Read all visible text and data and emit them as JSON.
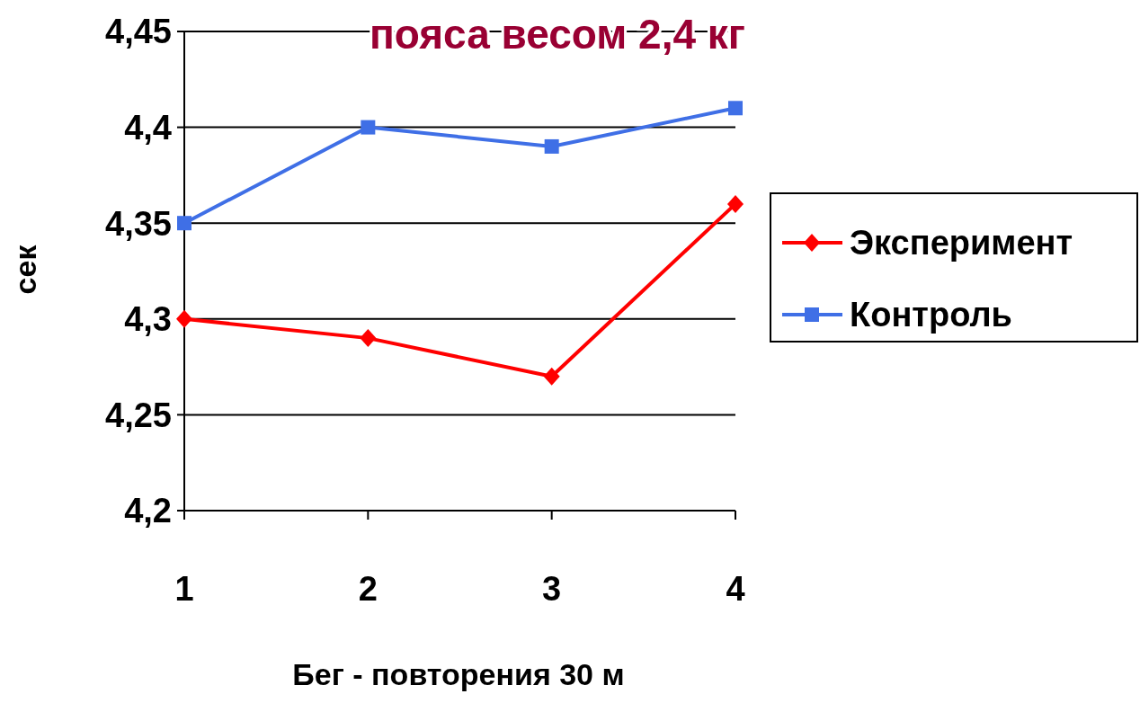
{
  "chart_data": {
    "type": "line",
    "title": "пояса весом 2,4 кг",
    "xlabel": "Бег - повторения 30 м",
    "ylabel": "сек",
    "categories": [
      "1",
      "2",
      "3",
      "4"
    ],
    "series": [
      {
        "name": "Эксперимент",
        "color": "#ff0000",
        "marker": "diamond",
        "values": [
          4.3,
          4.29,
          4.27,
          4.36
        ]
      },
      {
        "name": "Контроль",
        "color": "#3f6fe6",
        "marker": "square",
        "values": [
          4.35,
          4.4,
          4.39,
          4.41
        ]
      }
    ],
    "ylim": [
      4.2,
      4.45
    ],
    "yticks": [
      {
        "value": 4.2,
        "label": "4,2"
      },
      {
        "value": 4.25,
        "label": "4,25"
      },
      {
        "value": 4.3,
        "label": "4,3"
      },
      {
        "value": 4.35,
        "label": "4,35"
      },
      {
        "value": 4.4,
        "label": "4,4"
      },
      {
        "value": 4.45,
        "label": "4,45"
      }
    ],
    "grid": "y",
    "legend": "right"
  }
}
